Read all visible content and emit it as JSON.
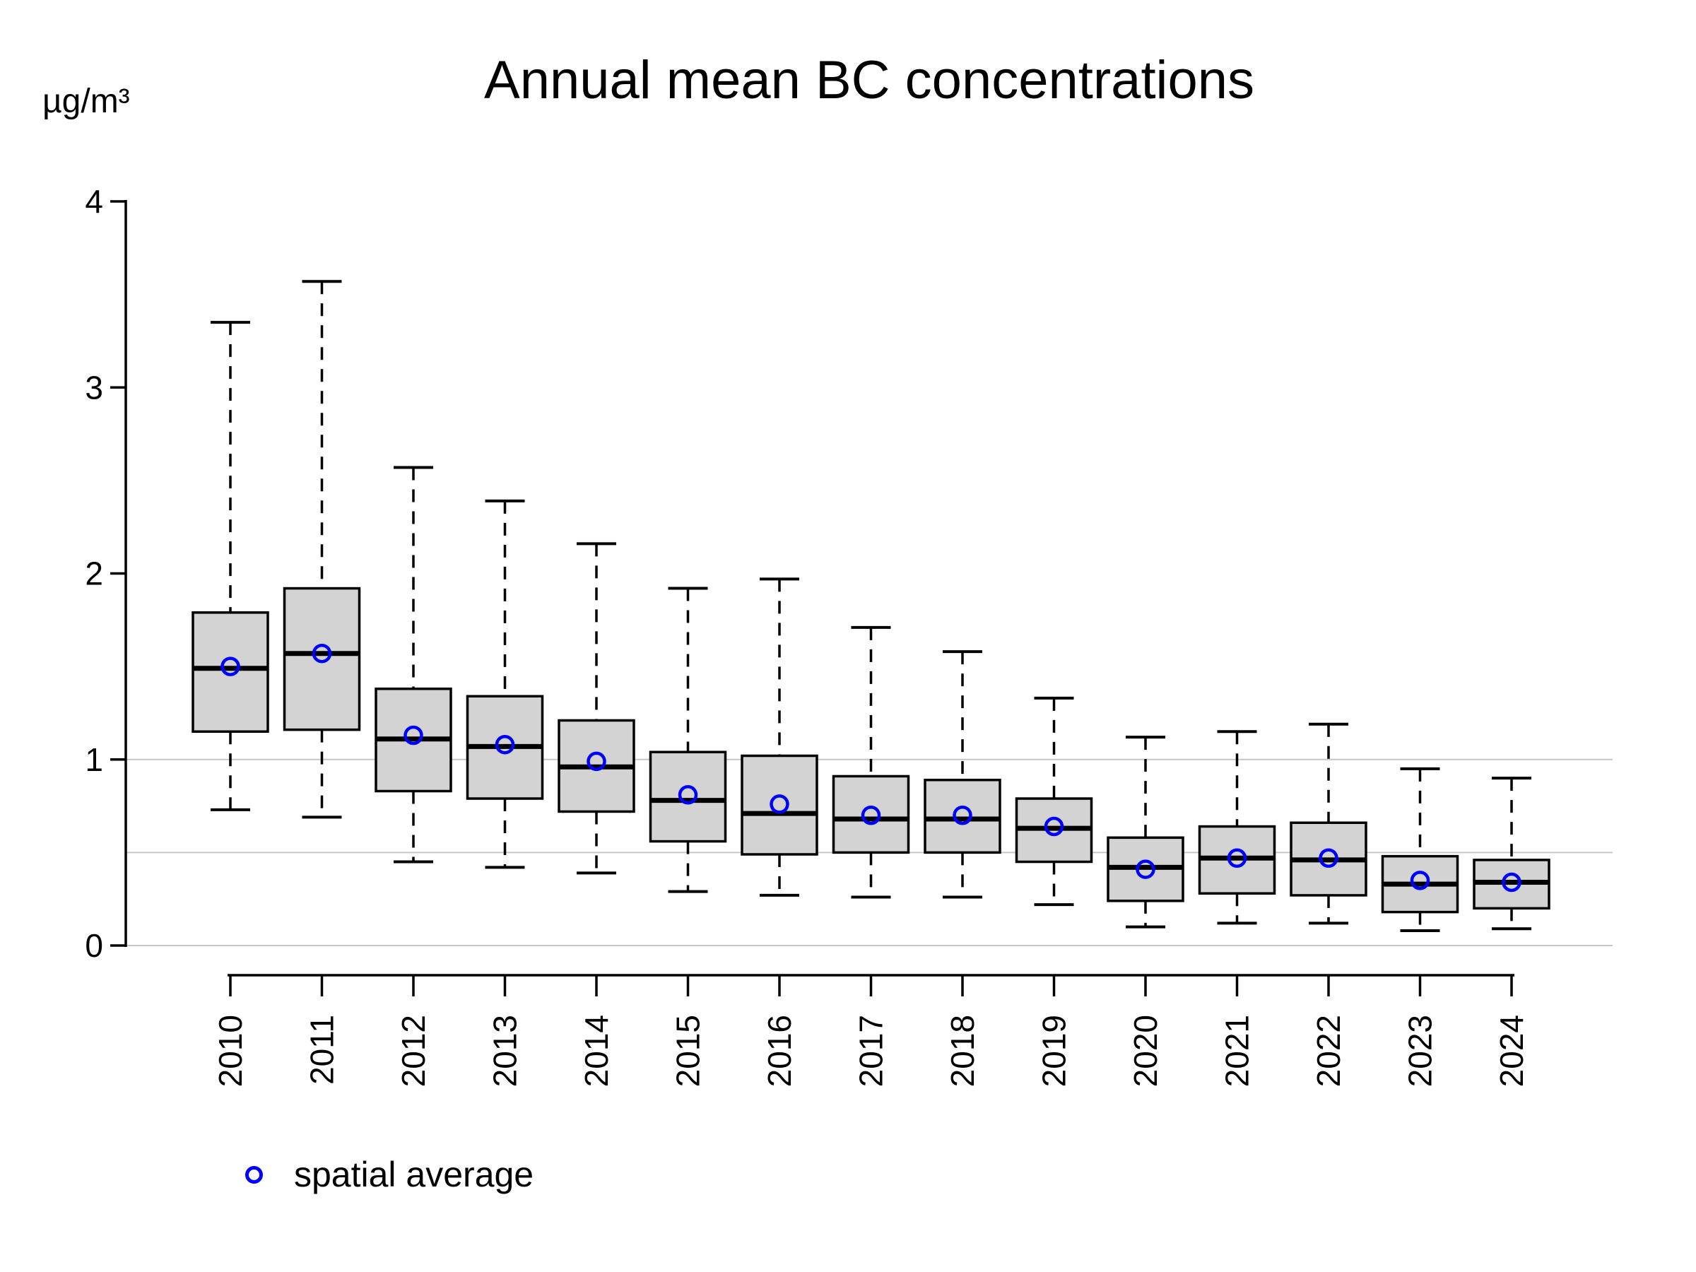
{
  "title": {
    "text": "Annual mean BC concentrations"
  },
  "legend": {
    "marker": "open-circle",
    "marker_color": "#0000ff",
    "label": "spatial average",
    "position": "bottom-left"
  },
  "chart_data": {
    "type": "boxplot",
    "title": "Annual mean BC concentrations",
    "ylabel": "µg/m³",
    "xlabel": "",
    "ylim": [
      0,
      4
    ],
    "y_ticks": [
      0,
      1,
      2,
      3,
      4
    ],
    "gridlines_y": [
      0,
      0.5,
      1.0
    ],
    "grid": "horizontal-only",
    "legend_position": "bottom-left",
    "categories": [
      "2010",
      "2011",
      "2012",
      "2013",
      "2014",
      "2015",
      "2016",
      "2017",
      "2018",
      "2019",
      "2020",
      "2021",
      "2022",
      "2023",
      "2024"
    ],
    "series": [
      {
        "year": "2010",
        "whisker_low": 0.73,
        "q1": 1.15,
        "median": 1.49,
        "mean": 1.5,
        "q3": 1.79,
        "whisker_high": 3.35
      },
      {
        "year": "2011",
        "whisker_low": 0.69,
        "q1": 1.16,
        "median": 1.57,
        "mean": 1.57,
        "q3": 1.92,
        "whisker_high": 3.57
      },
      {
        "year": "2012",
        "whisker_low": 0.45,
        "q1": 0.83,
        "median": 1.11,
        "mean": 1.13,
        "q3": 1.38,
        "whisker_high": 2.57
      },
      {
        "year": "2013",
        "whisker_low": 0.42,
        "q1": 0.79,
        "median": 1.07,
        "mean": 1.08,
        "q3": 1.34,
        "whisker_high": 2.39
      },
      {
        "year": "2014",
        "whisker_low": 0.39,
        "q1": 0.72,
        "median": 0.96,
        "mean": 0.99,
        "q3": 1.21,
        "whisker_high": 2.16
      },
      {
        "year": "2015",
        "whisker_low": 0.29,
        "q1": 0.56,
        "median": 0.78,
        "mean": 0.81,
        "q3": 1.04,
        "whisker_high": 1.92
      },
      {
        "year": "2016",
        "whisker_low": 0.27,
        "q1": 0.49,
        "median": 0.71,
        "mean": 0.76,
        "q3": 1.02,
        "whisker_high": 1.97
      },
      {
        "year": "2017",
        "whisker_low": 0.26,
        "q1": 0.5,
        "median": 0.68,
        "mean": 0.7,
        "q3": 0.91,
        "whisker_high": 1.71
      },
      {
        "year": "2018",
        "whisker_low": 0.26,
        "q1": 0.5,
        "median": 0.68,
        "mean": 0.7,
        "q3": 0.89,
        "whisker_high": 1.58
      },
      {
        "year": "2019",
        "whisker_low": 0.22,
        "q1": 0.45,
        "median": 0.63,
        "mean": 0.64,
        "q3": 0.79,
        "whisker_high": 1.33
      },
      {
        "year": "2020",
        "whisker_low": 0.1,
        "q1": 0.24,
        "median": 0.42,
        "mean": 0.41,
        "q3": 0.58,
        "whisker_high": 1.12
      },
      {
        "year": "2021",
        "whisker_low": 0.12,
        "q1": 0.28,
        "median": 0.47,
        "mean": 0.47,
        "q3": 0.64,
        "whisker_high": 1.15
      },
      {
        "year": "2022",
        "whisker_low": 0.12,
        "q1": 0.27,
        "median": 0.46,
        "mean": 0.47,
        "q3": 0.66,
        "whisker_high": 1.19
      },
      {
        "year": "2023",
        "whisker_low": 0.08,
        "q1": 0.18,
        "median": 0.33,
        "mean": 0.35,
        "q3": 0.48,
        "whisker_high": 0.95
      },
      {
        "year": "2024",
        "whisker_low": 0.09,
        "q1": 0.2,
        "median": 0.34,
        "mean": 0.34,
        "q3": 0.46,
        "whisker_high": 0.9
      }
    ],
    "box_fill": "#d3d3d3",
    "box_border": "#000000",
    "median_color": "#000000",
    "whisker_color": "#000000",
    "whisker_style": "dashed",
    "mean_marker_color": "#0000ff",
    "gridline_color": "#c6c6c6",
    "axis_color": "#000000"
  }
}
